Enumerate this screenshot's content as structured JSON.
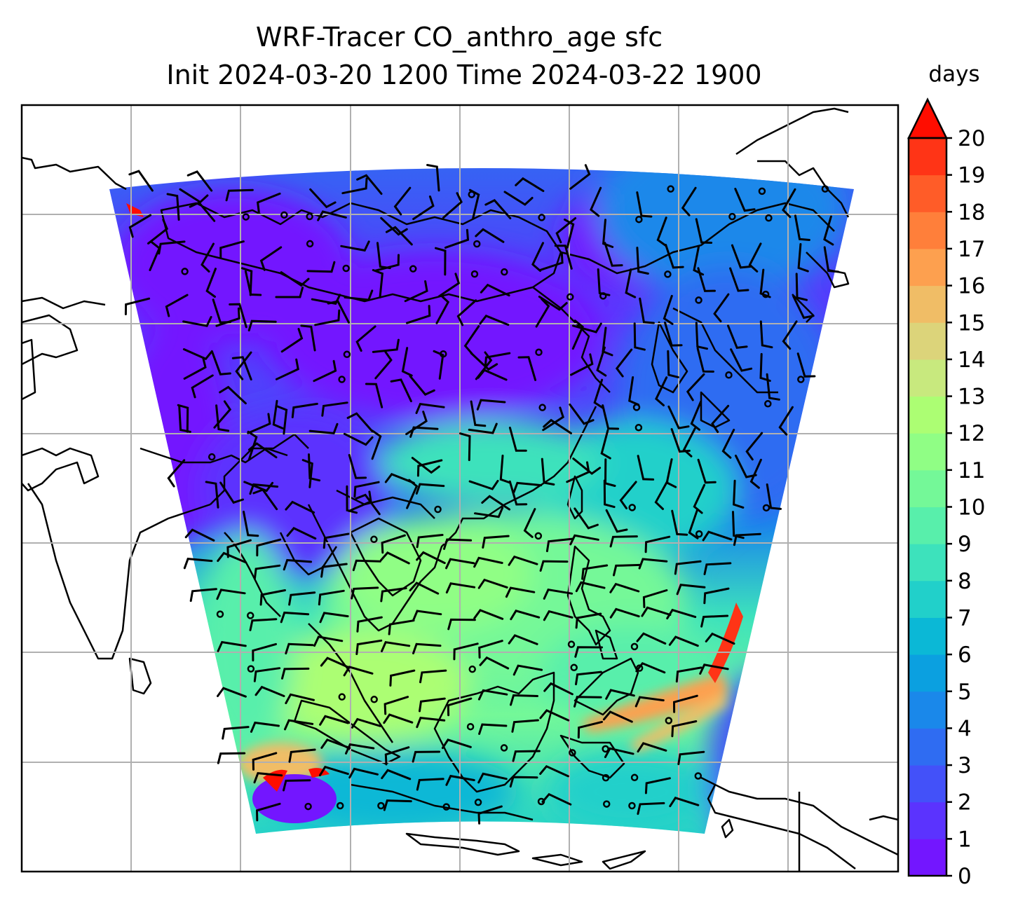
{
  "title_line1": "WRF-Tracer CO_anthro_age sfc",
  "title_line2": "Init 2024-03-20 1200 Time 2024-03-22 1900",
  "colorbar": {
    "label": "days",
    "ticks": [
      "0",
      "1",
      "2",
      "3",
      "4",
      "5",
      "6",
      "7",
      "8",
      "9",
      "10",
      "11",
      "12",
      "13",
      "14",
      "15",
      "16",
      "17",
      "18",
      "19",
      "20"
    ],
    "extend": "max",
    "colors": [
      "#7316ff",
      "#5b33fe",
      "#4351f9",
      "#2f6cf2",
      "#1a88ea",
      "#0ba0e0",
      "#0bb8d6",
      "#21d0ca",
      "#3de2bc",
      "#58efab",
      "#74f898",
      "#90fe85",
      "#acfe73",
      "#c8e97e",
      "#dcd47a",
      "#f0bd66",
      "#fda04f",
      "#ff7f3a",
      "#ff5c28",
      "#ff3416",
      "#ff0d00"
    ]
  },
  "map": {
    "gridlines": true,
    "coastlines": true,
    "wind_barbs": true
  }
}
